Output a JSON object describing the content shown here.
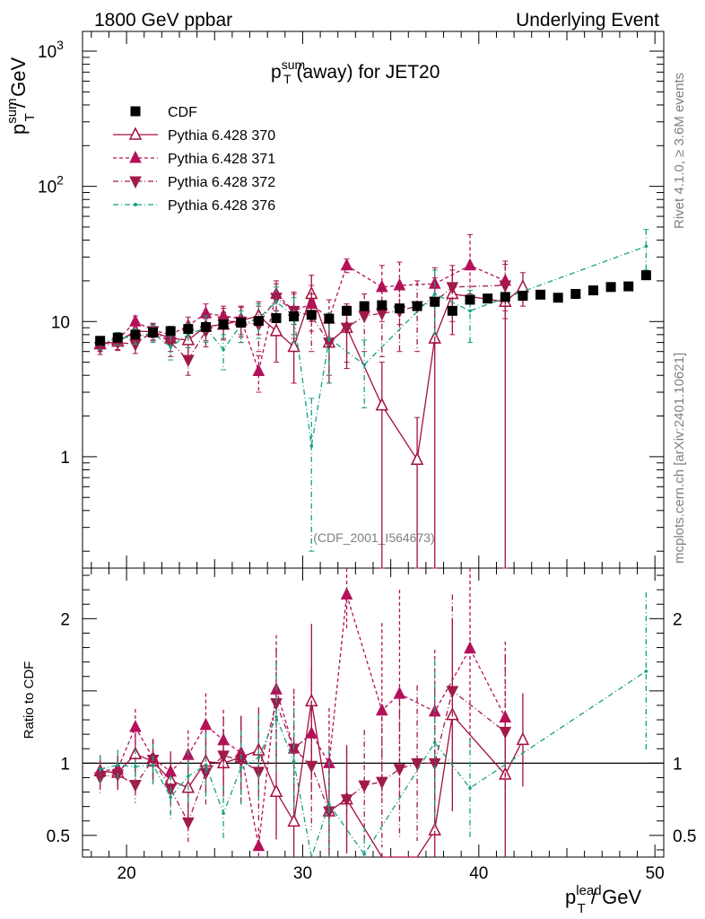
{
  "header": {
    "left_label": "1800 GeV ppbar",
    "right_label": "Underlying Event",
    "plot_title_main": "p",
    "plot_title_sub": "T",
    "plot_title_sup": "sum",
    "plot_title_rest": " (away) for JET20",
    "analysis_id": "(CDF_2001_I564673)"
  },
  "side_labels": {
    "rivet": "Rivet 4.1.0, ≥ 3.6M events",
    "mcplots": "mcplots.cern.ch [arXiv:2401.10621]"
  },
  "axes": {
    "y_main_label_p": "p",
    "y_main_label_sup": "sum",
    "y_main_label_sub": "T",
    "y_main_label_rest": " / GeV",
    "y_ratio_label": "Ratio to CDF",
    "x_label_p": "p",
    "x_label_sup": "lead",
    "x_label_sub": "T",
    "x_label_rest": " / GeV"
  },
  "legend": [
    {
      "label": "CDF",
      "color": "#000000",
      "marker": "square",
      "line": "none"
    },
    {
      "label": "Pythia 6.428 370",
      "color": "#a50f3a",
      "marker": "triangle-up-open",
      "line": "solid"
    },
    {
      "label": "Pythia 6.428 371",
      "color": "#b5105a",
      "marker": "triangle-up",
      "line": "dashed"
    },
    {
      "label": "Pythia 6.428 372",
      "color": "#a01a4a",
      "marker": "triangle-down",
      "line": "dashdot"
    },
    {
      "label": "Pythia 6.428 376",
      "color": "#16a085",
      "marker": "dot",
      "line": "dashdot"
    }
  ],
  "chart_data": {
    "type": "scatter",
    "x_range": [
      17.5,
      50.5
    ],
    "y_main_log_range": [
      0.15,
      1400
    ],
    "y_ratio_range": [
      0.35,
      2.35
    ],
    "x_ticks": [
      "20",
      "30",
      "40",
      "50"
    ],
    "y_main_ticks": [
      {
        "value": 1,
        "label": "1"
      },
      {
        "value": 10,
        "label": "10"
      }
    ],
    "y_main_pow_ticks": [
      {
        "value": 100,
        "exp": "2"
      },
      {
        "value": 1000,
        "exp": "3"
      }
    ],
    "y_ratio_ticks": [
      "0.5",
      "1",
      "2"
    ],
    "series": [
      {
        "name": "CDF",
        "x": [
          18.5,
          19.5,
          20.5,
          21.5,
          22.5,
          23.5,
          24.5,
          25.5,
          26.5,
          27.5,
          28.5,
          29.5,
          30.5,
          31.5,
          32.5,
          33.5,
          34.5,
          35.5,
          36.5,
          37.5,
          38.5,
          39.5,
          40.5,
          41.5,
          42.5,
          43.5,
          44.5,
          45.5,
          46.5,
          47.5,
          48.5,
          49.5
        ],
        "y": [
          7.2,
          7.6,
          8.0,
          8.3,
          8.5,
          8.8,
          9.1,
          9.5,
          9.8,
          10.1,
          10.6,
          10.9,
          11.2,
          10.5,
          12.0,
          13.0,
          13.2,
          12.5,
          13.0,
          14.0,
          12.0,
          14.5,
          14.8,
          15.2,
          15.5,
          15.8,
          15.0,
          16.0,
          17.0,
          18.0,
          18.2,
          22.0
        ],
        "err": [
          0.3,
          0.3,
          0.3,
          0.3,
          0.3,
          0.3,
          0.3,
          0.3,
          0.3,
          0.4,
          0.4,
          0.5,
          0.5,
          0.6,
          0.6,
          0.7,
          0.7,
          0.7,
          0.8,
          0.8,
          0.8,
          0.9,
          0.9,
          1.0,
          1.0,
          1.0,
          1.0,
          1.1,
          1.1,
          1.2,
          1.2,
          1.5
        ]
      },
      {
        "name": "Pythia 6.428 370",
        "x": [
          18.5,
          19.5,
          20.5,
          21.5,
          22.5,
          23.5,
          24.5,
          25.5,
          26.5,
          27.5,
          28.5,
          29.5,
          30.5,
          31.5,
          32.5,
          34.5,
          36.5,
          37.5,
          38.5,
          41.5,
          42.5
        ],
        "y": [
          6.8,
          7.1,
          8.5,
          8.4,
          7.5,
          7.3,
          9.2,
          9.5,
          10.2,
          11.0,
          8.5,
          6.5,
          16.0,
          7.0,
          9.0,
          2.4,
          0.95,
          7.5,
          16.0,
          14.0,
          18.0
        ],
        "err_lo": [
          0.8,
          0.9,
          1.2,
          1.2,
          1.5,
          1.8,
          2.0,
          2.2,
          2.5,
          3.0,
          3.5,
          3.0,
          6.0,
          3.5,
          4.5,
          2.35,
          0.94,
          7.45,
          8.0,
          13.95,
          5.0
        ],
        "err_hi": [
          0.8,
          0.9,
          1.2,
          1.2,
          1.5,
          1.8,
          2.0,
          2.2,
          2.5,
          3.0,
          3.5,
          3.0,
          6.0,
          3.5,
          4.5,
          2.6,
          1.0,
          7.5,
          8.0,
          6.0,
          5.0
        ]
      },
      {
        "name": "Pythia 6.428 371",
        "x": [
          18.5,
          19.5,
          20.5,
          21.5,
          22.5,
          23.5,
          24.5,
          25.5,
          26.5,
          27.5,
          28.5,
          29.5,
          30.5,
          31.5,
          32.5,
          34.5,
          35.5,
          37.5,
          39.5,
          41.5
        ],
        "y": [
          6.8,
          7.3,
          10.0,
          8.6,
          8.0,
          9.3,
          11.5,
          11.0,
          10.5,
          4.3,
          16.0,
          12.0,
          13.5,
          10.5,
          26.0,
          18.0,
          18.5,
          19.0,
          26.0,
          20.0
        ],
        "err_lo": [
          0.6,
          0.7,
          1.0,
          1.0,
          1.2,
          1.5,
          2.0,
          2.0,
          2.5,
          1.3,
          4.0,
          4.0,
          5.0,
          4.0,
          3.0,
          8.0,
          9.0,
          6.0,
          10.0,
          8.0
        ],
        "err_hi": [
          0.6,
          0.7,
          1.0,
          1.0,
          1.2,
          1.5,
          2.0,
          2.0,
          2.5,
          1.3,
          4.0,
          4.0,
          5.0,
          4.0,
          3.0,
          8.0,
          9.0,
          6.0,
          18.0,
          8.0
        ]
      },
      {
        "name": "Pythia 6.428 372",
        "x": [
          18.5,
          19.5,
          20.5,
          21.5,
          22.5,
          23.5,
          24.5,
          25.5,
          26.5,
          27.5,
          28.5,
          29.5,
          30.5,
          31.5,
          32.5,
          33.5,
          34.5,
          35.5,
          36.5,
          37.5,
          38.5,
          41.5
        ],
        "y": [
          6.5,
          7.0,
          6.8,
          8.5,
          7.0,
          5.2,
          8.5,
          10.0,
          10.0,
          9.5,
          15.0,
          12.0,
          11.0,
          7.0,
          9.0,
          11.0,
          11.5,
          12.0,
          13.0,
          14.0,
          18.0,
          18.5
        ],
        "err_lo": [
          0.8,
          0.9,
          1.0,
          1.2,
          1.5,
          1.2,
          2.0,
          2.5,
          3.0,
          3.5,
          4.0,
          4.5,
          5.0,
          3.0,
          4.0,
          5.0,
          6.0,
          6.0,
          7.0,
          7.0,
          8.0,
          8.0
        ],
        "err_hi": [
          0.8,
          0.9,
          1.0,
          1.2,
          1.5,
          1.2,
          2.0,
          2.5,
          3.0,
          3.5,
          4.0,
          4.5,
          5.0,
          3.0,
          4.0,
          5.0,
          6.0,
          6.0,
          7.0,
          7.0,
          8.0,
          8.0
        ]
      },
      {
        "name": "Pythia 6.428 376",
        "x": [
          18.5,
          19.5,
          20.5,
          21.5,
          22.5,
          23.5,
          24.5,
          25.5,
          26.5,
          27.5,
          28.5,
          29.5,
          30.5,
          31.5,
          33.5,
          37.5,
          39.5,
          49.5
        ],
        "y": [
          6.9,
          7.5,
          7.8,
          8.2,
          6.5,
          8.0,
          9.0,
          6.2,
          9.5,
          10.5,
          14.0,
          11.0,
          1.2,
          7.5,
          4.8,
          16.0,
          12.0,
          36.0
        ],
        "err_lo": [
          0.7,
          0.8,
          1.0,
          1.2,
          1.3,
          1.6,
          2.0,
          1.8,
          2.5,
          3.0,
          4.0,
          4.0,
          1.0,
          4.0,
          2.5,
          8.0,
          5.0,
          12.0
        ],
        "err_hi": [
          0.7,
          0.8,
          1.0,
          1.2,
          1.3,
          1.6,
          2.0,
          1.8,
          2.5,
          3.0,
          4.0,
          4.0,
          1.5,
          4.0,
          2.5,
          8.0,
          5.0,
          12.0
        ]
      }
    ]
  }
}
